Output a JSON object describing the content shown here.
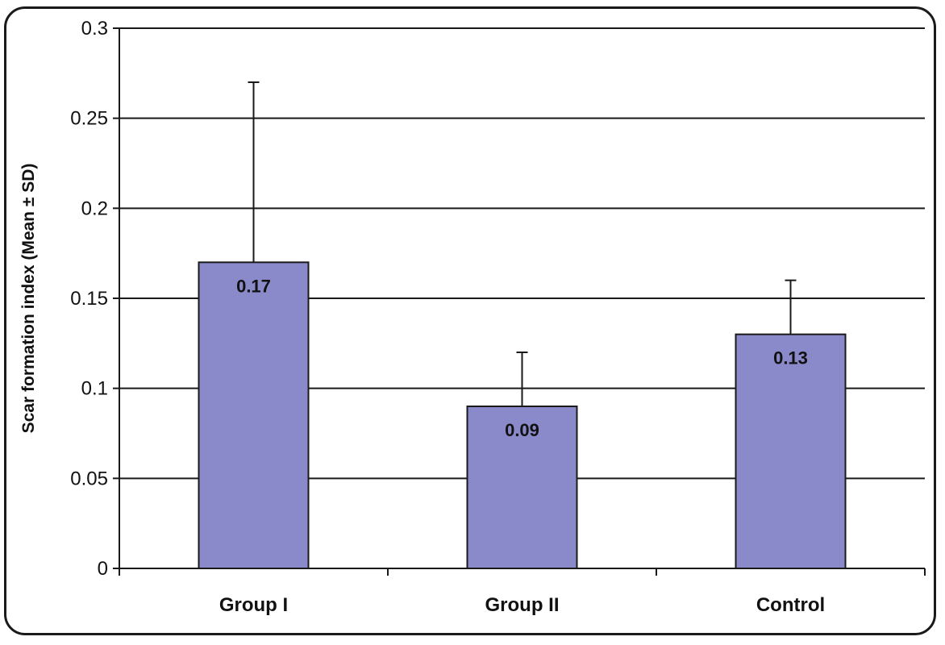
{
  "chart_data": {
    "type": "bar",
    "title": "",
    "xlabel": "",
    "ylabel": "Scar formation index (Mean ± SD)",
    "categories": [
      "Group I",
      "Group II",
      "Control"
    ],
    "values": [
      0.17,
      0.09,
      0.13
    ],
    "error_upper": [
      0.27,
      0.12,
      0.16
    ],
    "data_labels": [
      "0.17",
      "0.09",
      "0.13"
    ],
    "ylim": [
      0,
      0.3
    ],
    "yticks": [
      0,
      0.05,
      0.1,
      0.15,
      0.2,
      0.25,
      0.3
    ],
    "ytick_labels": [
      "0",
      "0.05",
      "0.1",
      "0.15",
      "0.2",
      "0.25",
      "0.3"
    ],
    "grid": true,
    "bar_color": "#8a8acb",
    "legend": "none"
  }
}
